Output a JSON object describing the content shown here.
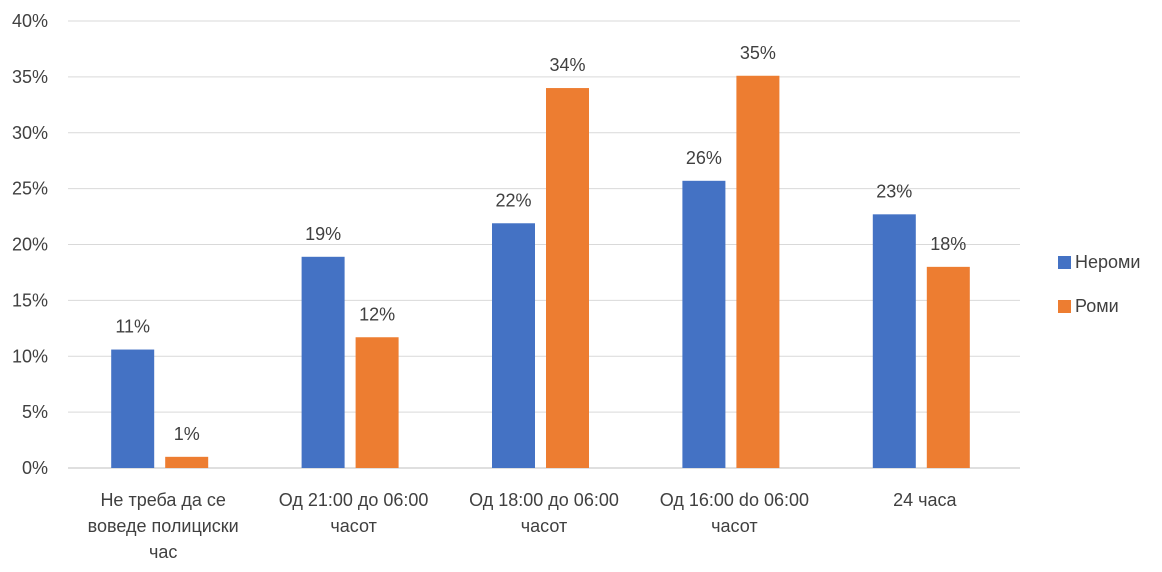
{
  "chart_data": {
    "type": "bar",
    "title": "",
    "xlabel": "",
    "ylabel": "",
    "ylim": [
      0,
      40
    ],
    "ytick_step": 5,
    "ytick_suffix": "%",
    "grid": true,
    "legend_position": "right",
    "categories": [
      [
        "Не треба да се",
        "воведе полициски",
        "час"
      ],
      [
        "Од 21:00 до 06:00",
        "часот"
      ],
      [
        "Од 18:00 до 06:00",
        "часот"
      ],
      [
        "Од 16:00 do 06:00",
        "часот"
      ],
      [
        "24 часа"
      ]
    ],
    "series": [
      {
        "name": "Нероми",
        "color": "#4472C4",
        "values": [
          10.6,
          18.9,
          21.9,
          25.7,
          22.7
        ],
        "labels": [
          "11%",
          "19%",
          "22%",
          "26%",
          "23%"
        ]
      },
      {
        "name": "Роми",
        "color": "#ED7D31",
        "values": [
          1.0,
          11.7,
          34.0,
          35.1,
          18.0
        ],
        "labels": [
          "1%",
          "12%",
          "34%",
          "35%",
          "18%"
        ]
      }
    ]
  }
}
